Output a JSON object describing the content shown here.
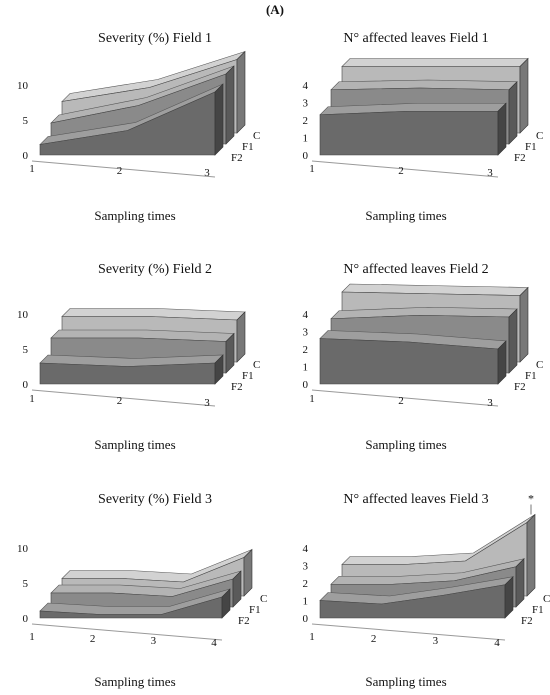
{
  "figure_label": "(A)",
  "x_axis_title": "Sampling times",
  "series_labels": [
    "C",
    "F1",
    "F2"
  ],
  "colors": {
    "C": "#b9b9b9",
    "F1": "#8a8a8a",
    "F2": "#6a6a6a"
  },
  "chart_data": [
    {
      "type": "area",
      "title": "Severity (%) Field 1",
      "xlabel": "Sampling times",
      "categories": [
        "1",
        "2",
        "3"
      ],
      "yticks": [
        "0",
        "5",
        "10"
      ],
      "ylim": [
        0,
        10
      ],
      "series": [
        {
          "name": "C",
          "values": [
            4.5,
            6.5,
            10.5
          ]
        },
        {
          "name": "F1",
          "values": [
            3.0,
            5.5,
            10.0
          ]
        },
        {
          "name": "F2",
          "values": [
            1.5,
            3.5,
            9.0
          ]
        }
      ]
    },
    {
      "type": "area",
      "title": "N° affected leaves Field 1",
      "xlabel": "Sampling times",
      "categories": [
        "1",
        "2",
        "3"
      ],
      "yticks": [
        "0",
        "1",
        "2",
        "3",
        "4"
      ],
      "ylim": [
        0,
        4
      ],
      "series": [
        {
          "name": "C",
          "values": [
            3.8,
            3.8,
            3.8
          ]
        },
        {
          "name": "F1",
          "values": [
            3.1,
            3.2,
            3.1
          ]
        },
        {
          "name": "F2",
          "values": [
            2.3,
            2.5,
            2.5
          ]
        }
      ]
    },
    {
      "type": "area",
      "title": "Severity (%) Field 2",
      "xlabel": "Sampling times",
      "categories": [
        "1",
        "2",
        "3"
      ],
      "yticks": [
        "0",
        "5",
        "10"
      ],
      "ylim": [
        0,
        10
      ],
      "series": [
        {
          "name": "C",
          "values": [
            6.5,
            6.5,
            6.0
          ]
        },
        {
          "name": "F1",
          "values": [
            5.0,
            5.0,
            4.5
          ]
        },
        {
          "name": "F2",
          "values": [
            3.0,
            2.5,
            3.0
          ]
        }
      ]
    },
    {
      "type": "area",
      "title": "N° affected leaves Field 2",
      "xlabel": "Sampling times",
      "categories": [
        "1",
        "2",
        "3"
      ],
      "yticks": [
        "0",
        "1",
        "2",
        "3",
        "4"
      ],
      "ylim": [
        0,
        4
      ],
      "series": [
        {
          "name": "C",
          "values": [
            4.0,
            3.9,
            3.8
          ]
        },
        {
          "name": "F1",
          "values": [
            3.1,
            3.3,
            3.2
          ]
        },
        {
          "name": "F2",
          "values": [
            2.6,
            2.4,
            2.0
          ]
        }
      ]
    },
    {
      "type": "area",
      "title": "Severity (%) Field 3",
      "xlabel": "Sampling times",
      "categories": [
        "1",
        "2",
        "3",
        "4"
      ],
      "yticks": [
        "0",
        "5",
        "10"
      ],
      "ylim": [
        0,
        10
      ],
      "series": [
        {
          "name": "C",
          "values": [
            2.5,
            2.5,
            2.0,
            5.5
          ]
        },
        {
          "name": "F1",
          "values": [
            2.0,
            2.0,
            1.5,
            4.0
          ]
        },
        {
          "name": "F2",
          "values": [
            1.0,
            0.5,
            0.5,
            3.0
          ]
        }
      ]
    },
    {
      "type": "area",
      "title": "N° affected leaves Field 3",
      "xlabel": "Sampling times",
      "categories": [
        "1",
        "2",
        "3",
        "4"
      ],
      "yticks": [
        "0",
        "1",
        "2",
        "3",
        "4"
      ],
      "ylim": [
        0,
        4
      ],
      "annotation": "*",
      "series": [
        {
          "name": "C",
          "values": [
            1.8,
            1.8,
            2.0,
            4.2
          ]
        },
        {
          "name": "F1",
          "values": [
            1.3,
            1.3,
            1.5,
            2.3
          ]
        },
        {
          "name": "F2",
          "values": [
            1.0,
            0.8,
            1.3,
            1.9
          ]
        }
      ]
    }
  ]
}
